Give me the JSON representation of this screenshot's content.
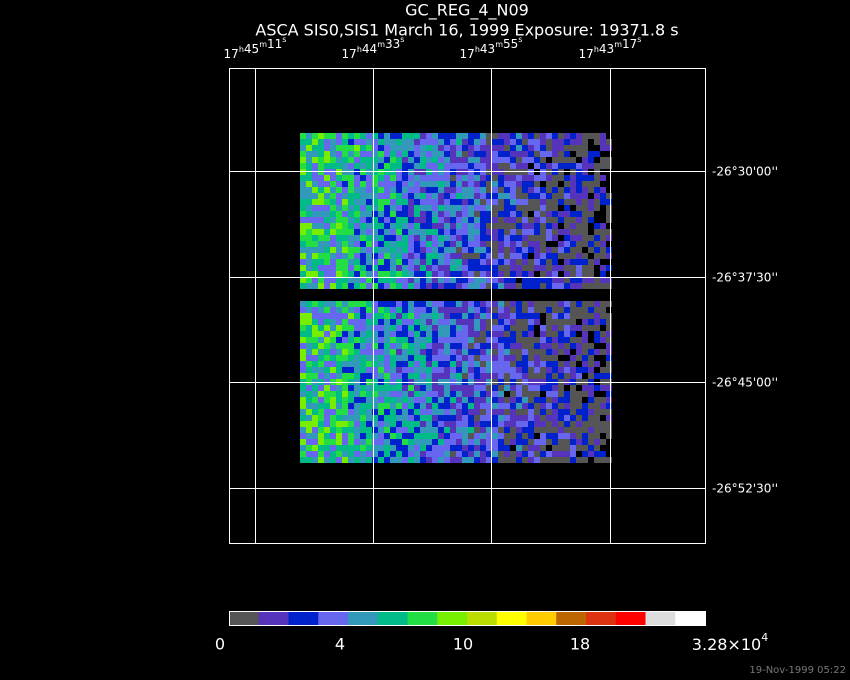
{
  "header": {
    "title": "GC_REG_4_N09",
    "subtitle": "ASCA SIS0,SIS1 March 16, 1999 Exposure: 19371.8 s"
  },
  "ra_units": {
    "h": "h",
    "m": "m",
    "s": "s"
  },
  "ra_labels": [
    {
      "hours": "17",
      "minutes": "45",
      "seconds": "11"
    },
    {
      "hours": "17",
      "minutes": "44",
      "seconds": "33"
    },
    {
      "hours": "17",
      "minutes": "43",
      "seconds": "55"
    },
    {
      "hours": "17",
      "minutes": "43",
      "seconds": "17"
    }
  ],
  "dec_labels": [
    "-26°30'00''",
    "-26°37'30''",
    "-26°45'00''",
    "-26°52'30''"
  ],
  "colorbar": {
    "colors": [
      "#555555",
      "#5533bb",
      "#0022cc",
      "#6666ee",
      "#3399bb",
      "#00bb88",
      "#22dd44",
      "#77ee00",
      "#bbdd00",
      "#ffff00",
      "#ffcc00",
      "#bb6600",
      "#dd3311",
      "#ff0000",
      "#dddddd",
      "#ffffff"
    ],
    "labels": [
      "0",
      "4",
      "10",
      "18"
    ],
    "max_label": {
      "mantissa": "3.28×10",
      "exponent": "4"
    }
  },
  "timestamp": "19-Nov-1999 05:22"
}
